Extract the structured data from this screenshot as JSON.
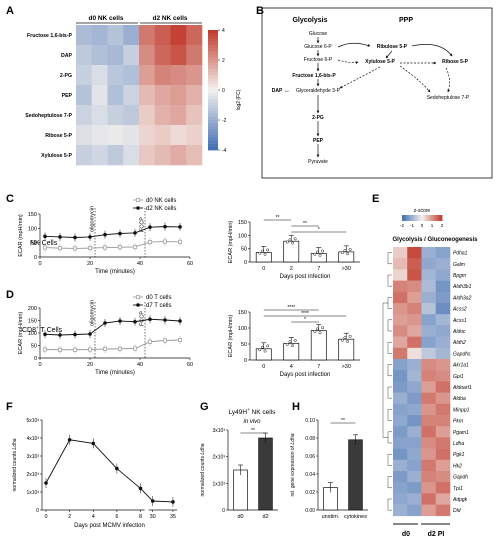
{
  "panels": {
    "A": "A",
    "B": "B",
    "C": "C",
    "D": "D",
    "E": "E",
    "F": "F",
    "G": "G",
    "H": "H"
  },
  "colors": {
    "red": "#c0392b",
    "blue": "#3f6db3",
    "light": "#f4f1ee",
    "line_dark": "#111111",
    "line_gray": "#9a9a9a",
    "bar": "#3a3a3a"
  },
  "chart_data": [
    {
      "panel": "A",
      "type": "heatmap",
      "column_groups": [
        "d0 NK cells",
        "d2 NK cells"
      ],
      "rows": [
        "Fructose 1,6-bis-P",
        "DAP",
        "2-PG",
        "PEP",
        "Sedoheptulose 7-P",
        "Ribose 5-P",
        "Xylulose 5-P"
      ],
      "values": [
        [
          -1.6,
          -1.8,
          -1.4,
          -2.0,
          2.6,
          3.2,
          3.8,
          3.0
        ],
        [
          -1.2,
          -1.5,
          -1.7,
          -1.0,
          2.2,
          3.0,
          3.4,
          2.6
        ],
        [
          -1.0,
          -0.6,
          -1.3,
          -1.5,
          1.8,
          2.4,
          2.2,
          2.0
        ],
        [
          -1.4,
          -0.4,
          -1.5,
          -0.9,
          1.2,
          1.6,
          1.8,
          1.4
        ],
        [
          -0.9,
          -0.6,
          -1.0,
          -1.2,
          0.8,
          1.4,
          1.6,
          1.0
        ],
        [
          -0.5,
          -0.3,
          -0.2,
          -0.4,
          0.6,
          0.8,
          0.5,
          0.7
        ],
        [
          -1.0,
          -0.8,
          -1.2,
          -0.6,
          0.9,
          1.2,
          1.5,
          1.1
        ]
      ],
      "colorbar_label": "log2 (FC)",
      "colorbar_ticks": [
        4,
        2,
        0,
        -2,
        -4
      ],
      "range": [
        -4,
        4
      ]
    },
    {
      "panel": "B",
      "type": "diagram",
      "headers": [
        "Glycolysis",
        "PPP"
      ],
      "nodes": [
        "Glucose",
        "Glucose 6-P",
        "Fructose 6-P",
        "Fructose 1,6-bis-P",
        "DAP",
        "Glyceraldehyde 3-P",
        "2-PG",
        "PEP",
        "Pyruvate",
        "Ribulose 5-P",
        "Xylulose 5-P",
        "Ribose 5-P",
        "Sedoheptulose 7-P"
      ],
      "arrow_symbol": "↔"
    },
    {
      "panel": "C-left",
      "type": "line",
      "row_label": "NK Cells",
      "xlabel": "Time (minutes)",
      "ylabel": "ECAR (mpH/min)",
      "xlim": [
        0,
        60
      ],
      "ylim": [
        0,
        150
      ],
      "xticks": [
        0,
        20,
        40,
        60
      ],
      "yticks": [
        0,
        50,
        100,
        150
      ],
      "annotations": [
        {
          "x": 22,
          "label": "oligomycin"
        },
        {
          "x": 42,
          "label": "FCCP"
        }
      ],
      "series": [
        {
          "name": "d0 NK cells",
          "x": [
            2,
            8,
            14,
            20,
            26,
            32,
            38,
            44,
            50,
            56
          ],
          "y": [
            33,
            31,
            30,
            31,
            33,
            34,
            35,
            52,
            54,
            53
          ]
        },
        {
          "name": "d2 NK cells",
          "x": [
            2,
            8,
            14,
            20,
            26,
            32,
            38,
            44,
            50,
            56
          ],
          "y": [
            72,
            70,
            68,
            70,
            78,
            82,
            84,
            104,
            106,
            105
          ]
        }
      ]
    },
    {
      "panel": "C-right",
      "type": "bar",
      "xlabel": "Days post infection",
      "ylabel": "ECAR (mpH/min)",
      "categories": [
        "0",
        "2",
        "7",
        ">30"
      ],
      "values": [
        36,
        78,
        32,
        38
      ],
      "ylim": [
        0,
        150
      ],
      "yticks": [
        0,
        50,
        100,
        150
      ],
      "significance": [
        "**",
        "**",
        "*"
      ]
    },
    {
      "panel": "D-left",
      "type": "line",
      "row_label": "CD8",
      "row_label_sup": "+",
      "row_label_tail": " T Cells",
      "xlabel": "Time (minutes)",
      "ylabel": "ECAR (mpH/min)",
      "xlim": [
        0,
        60
      ],
      "ylim": [
        0,
        200
      ],
      "xticks": [
        0,
        20,
        40,
        60
      ],
      "yticks": [
        0,
        50,
        100,
        150,
        200
      ],
      "annotations": [
        {
          "x": 22,
          "label": "oligomycin"
        },
        {
          "x": 42,
          "label": "FCCP"
        }
      ],
      "series": [
        {
          "name": "d0 T cells",
          "x": [
            2,
            8,
            14,
            20,
            26,
            32,
            38,
            44,
            50,
            56
          ],
          "y": [
            34,
            33,
            33,
            34,
            36,
            37,
            38,
            65,
            70,
            72
          ]
        },
        {
          "name": "d7 T cells",
          "x": [
            2,
            8,
            14,
            20,
            26,
            32,
            38,
            44,
            50,
            56
          ],
          "y": [
            95,
            92,
            94,
            96,
            140,
            148,
            145,
            155,
            152,
            148
          ]
        }
      ]
    },
    {
      "panel": "D-right",
      "type": "bar",
      "xlabel": "Days post infection",
      "ylabel": "ECAR (mpH/min)",
      "categories": [
        "0",
        "4",
        "7",
        ">30"
      ],
      "values": [
        35,
        52,
        92,
        65
      ],
      "ylim": [
        0,
        150
      ],
      "yticks": [
        0,
        50,
        100,
        150
      ],
      "significance": [
        "****",
        "****",
        "*"
      ]
    },
    {
      "panel": "E",
      "type": "heatmap",
      "title": "Glycolysis / Gluconeogenesis",
      "colorbar_label": "z-score",
      "colorbar_ticks": [
        "-2",
        "-1",
        "0",
        "1",
        "2"
      ],
      "column_groups": [
        "d0",
        "d2 PI"
      ],
      "rows": [
        "Pdha1",
        "Galm",
        "Bpgm",
        "Aldh3b1",
        "Aldh3a2",
        "Acss2",
        "Acss1",
        "Aldoc",
        "Aldh2",
        "Gapdhs",
        "Akr1a1",
        "Gpi1",
        "Aldoart1",
        "Aldoa",
        "Minpp1",
        "Pkm",
        "Pgam1",
        "Ldha",
        "Pgk1",
        "Hk2",
        "Gapdh",
        "Tpi1",
        "Adpgk",
        "Dld"
      ],
      "values": [
        [
          0.4,
          1.8,
          -1.0,
          -1.2
        ],
        [
          0.6,
          1.6,
          -1.1,
          -1.0
        ],
        [
          0.3,
          1.7,
          -0.9,
          -1.1
        ],
        [
          1.2,
          1.1,
          -0.8,
          -1.4
        ],
        [
          1.4,
          0.9,
          -1.0,
          -1.3
        ],
        [
          1.0,
          1.2,
          -0.7,
          -1.5
        ],
        [
          0.9,
          1.0,
          -1.2,
          -0.9
        ],
        [
          1.1,
          0.8,
          -1.0,
          -1.1
        ],
        [
          0.8,
          1.4,
          -1.2,
          -1.0
        ],
        [
          1.3,
          0.2,
          -0.6,
          -0.9
        ],
        [
          -1.2,
          -1.0,
          1.1,
          1.0
        ],
        [
          -1.4,
          -0.9,
          1.2,
          1.1
        ],
        [
          -1.3,
          -1.1,
          0.9,
          1.4
        ],
        [
          -1.0,
          -1.3,
          1.3,
          1.0
        ],
        [
          -1.2,
          -1.1,
          1.0,
          1.3
        ],
        [
          -1.1,
          -1.4,
          1.2,
          1.2
        ],
        [
          -1.3,
          -1.0,
          1.4,
          0.9
        ],
        [
          -1.2,
          -1.2,
          1.1,
          1.3
        ],
        [
          -1.4,
          -1.1,
          1.0,
          1.4
        ],
        [
          -1.0,
          -1.2,
          1.3,
          0.9
        ],
        [
          -1.3,
          -1.0,
          1.2,
          1.1
        ],
        [
          -1.2,
          -1.3,
          1.0,
          1.4
        ],
        [
          -1.1,
          -1.0,
          1.4,
          0.8
        ],
        [
          -1.0,
          -1.2,
          0.9,
          1.3
        ]
      ]
    },
    {
      "panel": "F",
      "type": "line",
      "xlabel": "Days post MCMV infection",
      "ylabel_pre": "normalized counts ",
      "ylabel_gene": "Ldha",
      "x": [
        0,
        2,
        4,
        6,
        8,
        30,
        35
      ],
      "xticks": [
        "0",
        "2",
        "4",
        "6",
        "8",
        "30",
        "35"
      ],
      "y": [
        1500,
        3900,
        3700,
        2300,
        1200,
        500,
        450
      ],
      "ylim": [
        0,
        5000
      ],
      "yticks": [
        "0",
        "1x10³",
        "2x10³",
        "3x10³",
        "4x10³",
        "5x10³"
      ]
    },
    {
      "panel": "G",
      "type": "bar",
      "title": "Ly49H",
      "title_sup": "+",
      "title_tail": " NK cells",
      "subtitle": "in vivo",
      "ylabel_pre": "normalized counts ",
      "ylabel_gene": "Ldha",
      "categories": [
        "d0",
        "d2"
      ],
      "values": [
        1500,
        2700
      ],
      "ylim": [
        0,
        3000
      ],
      "yticks": [
        "0",
        "1x10³",
        "2x10³",
        "3x10³"
      ],
      "significance": [
        "**"
      ]
    },
    {
      "panel": "H",
      "type": "bar",
      "ylabel_pre": "rel. gene expression of ",
      "ylabel_gene": "Ldha",
      "categories": [
        "unstim.",
        "cytokines"
      ],
      "values": [
        0.025,
        0.078
      ],
      "ylim": [
        0,
        0.1
      ],
      "yticks": [
        "0.00",
        "0.02",
        "0.04",
        "0.06",
        "0.08",
        "0.10"
      ],
      "significance": [
        "**"
      ]
    }
  ]
}
